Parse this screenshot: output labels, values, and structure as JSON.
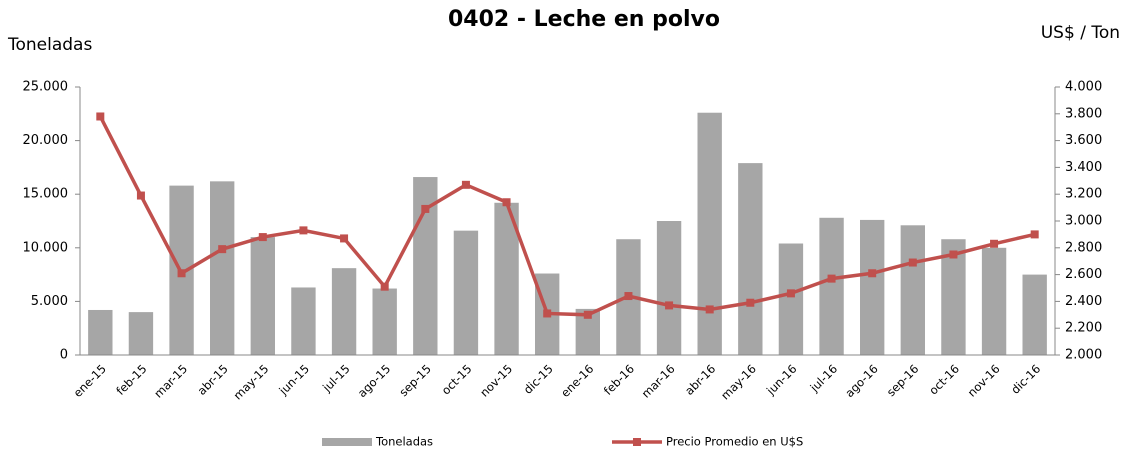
{
  "chart_data": {
    "type": "bar_line",
    "title": "0402 - Leche en polvo",
    "y_label": "Toneladas",
    "y2_label": "US$ / Ton",
    "categories": [
      "ene-15",
      "feb-15",
      "mar-15",
      "abr-15",
      "may-15",
      "jun-15",
      "jul-15",
      "ago-15",
      "sep-15",
      "oct-15",
      "nov-15",
      "dic-15",
      "ene-16",
      "feb-16",
      "mar-16",
      "abr-16",
      "may-16",
      "jun-16",
      "jul-16",
      "ago-16",
      "sep-16",
      "oct-16",
      "nov-16",
      "dic-16"
    ],
    "series": [
      {
        "name": "Toneladas",
        "type": "bar",
        "color": "#a6a6a6",
        "values": [
          4200,
          4000,
          15800,
          16200,
          11000,
          6300,
          8100,
          6200,
          16600,
          11600,
          14200,
          7600,
          4300,
          10800,
          12500,
          22600,
          17900,
          10400,
          12800,
          12600,
          12100,
          10800,
          10000,
          7500
        ]
      },
      {
        "name": "Precio Promedio en  U$S",
        "type": "line",
        "axis": "y2",
        "color": "#c0504d",
        "values": [
          3780,
          3190,
          2610,
          2790,
          2880,
          2930,
          2870,
          2510,
          3090,
          3270,
          3140,
          2310,
          2300,
          2440,
          2370,
          2340,
          2390,
          2460,
          2570,
          2610,
          2690,
          2750,
          2830,
          2900
        ]
      }
    ],
    "ylim": [
      0,
      25000
    ],
    "yticks": [
      0,
      {
        "value": 5000,
        "label": "5.000"
      },
      {
        "value": 10000,
        "label": "10.000"
      },
      {
        "value": 15000,
        "label": "15.000"
      },
      {
        "value": 20000,
        "label": "20.000"
      },
      {
        "value": 25000,
        "label": "25.000"
      }
    ],
    "y2lim": [
      2000,
      4000
    ],
    "y2ticks": [
      {
        "value": 2000,
        "label": "2.000"
      },
      {
        "value": 2200,
        "label": "2.200"
      },
      {
        "value": 2400,
        "label": "2.400"
      },
      {
        "value": 2600,
        "label": "2.600"
      },
      {
        "value": 2800,
        "label": "2.800"
      },
      {
        "value": 3000,
        "label": "3.000"
      },
      {
        "value": 3200,
        "label": "3.200"
      },
      {
        "value": 3400,
        "label": "3.400"
      },
      {
        "value": 3600,
        "label": "3.600"
      },
      {
        "value": 3800,
        "label": "3.800"
      },
      {
        "value": 4000,
        "label": "4.000"
      }
    ],
    "legend": "bottom"
  }
}
